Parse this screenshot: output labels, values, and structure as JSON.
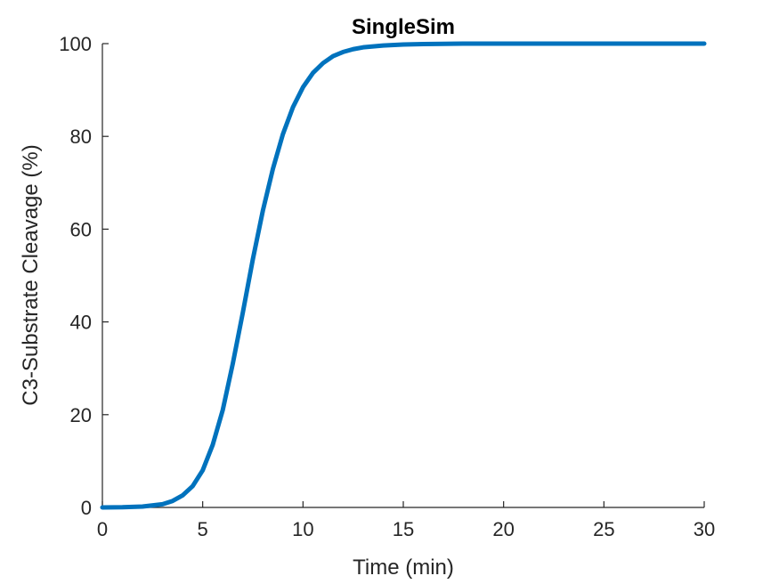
{
  "chart_data": {
    "type": "line",
    "title": "SingleSim",
    "xlabel": "Time (min)",
    "ylabel": "C3-Substrate Cleavage (%)",
    "xlim": [
      0,
      30
    ],
    "ylim": [
      0,
      100
    ],
    "xticks": [
      0,
      5,
      10,
      15,
      20,
      25,
      30
    ],
    "yticks": [
      0,
      20,
      40,
      60,
      80,
      100
    ],
    "grid": false,
    "series": [
      {
        "color": "#0072BD",
        "x": [
          0,
          1,
          2,
          3,
          3.5,
          4,
          4.5,
          5,
          5.5,
          6,
          6.5,
          7,
          7.5,
          8,
          8.5,
          9,
          9.5,
          10,
          10.5,
          11,
          11.5,
          12,
          12.5,
          13,
          14,
          15,
          16,
          17,
          18,
          20,
          22,
          25,
          30
        ],
        "y": [
          0,
          0.05,
          0.2,
          0.7,
          1.4,
          2.6,
          4.6,
          8,
          13.5,
          21,
          31,
          42,
          53.5,
          64,
          73,
          80.5,
          86.3,
          90.6,
          93.7,
          95.8,
          97.3,
          98.2,
          98.8,
          99.2,
          99.6,
          99.8,
          99.9,
          99.95,
          100,
          100,
          100,
          100,
          100
        ]
      }
    ]
  }
}
